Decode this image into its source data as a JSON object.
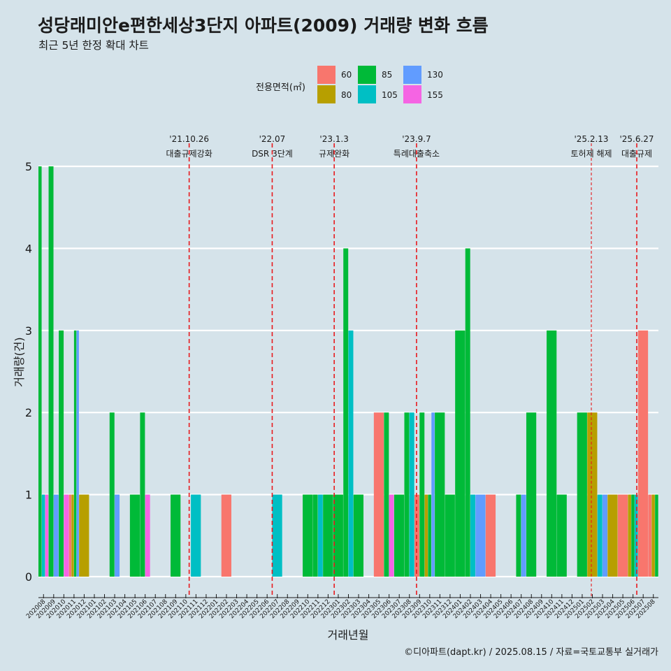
{
  "header": {
    "title": "성당래미안e편한세상3단지 아파트(2009) 거래량 변화 흐름",
    "subtitle": "최근 5년 한정 확대 차트"
  },
  "legend": {
    "title": "전용면적(㎡)",
    "items": [
      {
        "label": "60",
        "color": "#f8766d"
      },
      {
        "label": "80",
        "color": "#b79f00"
      },
      {
        "label": "85",
        "color": "#00ba38"
      },
      {
        "label": "105",
        "color": "#00bfc4"
      },
      {
        "label": "130",
        "color": "#619cff"
      },
      {
        "label": "155",
        "color": "#f564e3"
      }
    ]
  },
  "caption": "©디아파트(dapt.kr) / 2025.08.15 / 자료=국토교통부 실거래가",
  "chart_data": {
    "type": "bar",
    "xlabel": "거래년월",
    "ylabel": "거래량(건)",
    "ylim": [
      0,
      5
    ],
    "yticks": [
      0,
      1,
      2,
      3,
      4,
      5
    ],
    "grid": "horizontal",
    "categories": [
      "202008",
      "202009",
      "202010",
      "202011",
      "202012",
      "202101",
      "202102",
      "202103",
      "202104",
      "202105",
      "202106",
      "202107",
      "202108",
      "202109",
      "202110",
      "202111",
      "202112",
      "202201",
      "202202",
      "202203",
      "202204",
      "202205",
      "202206",
      "202207",
      "202208",
      "202209",
      "202210",
      "202211",
      "202212",
      "202301",
      "202302",
      "202303",
      "202304",
      "202305",
      "202306",
      "202307",
      "202308",
      "202309",
      "202310",
      "202311",
      "202312",
      "202401",
      "202402",
      "202403",
      "202404",
      "202405",
      "202406",
      "202407",
      "202408",
      "202409",
      "202410",
      "202411",
      "202412",
      "202501",
      "202502",
      "202503",
      "202504",
      "202505",
      "202506",
      "202507",
      "202508"
    ],
    "series": [
      {
        "name": "60",
        "color": "#f8766d",
        "values": [
          0,
          0,
          0,
          1,
          0,
          0,
          0,
          0,
          0,
          0,
          0,
          0,
          0,
          0,
          0,
          0,
          0,
          0,
          1,
          0,
          0,
          0,
          0,
          0,
          0,
          0,
          0,
          0,
          0,
          0,
          0,
          0,
          0,
          2,
          0,
          0,
          0,
          1,
          0,
          0,
          0,
          0,
          0,
          0,
          1,
          0,
          0,
          0,
          0,
          0,
          0,
          0,
          0,
          0,
          0,
          0,
          0,
          1,
          0,
          3,
          1
        ]
      },
      {
        "name": "80",
        "color": "#b79f00",
        "values": [
          0,
          0,
          0,
          1,
          1,
          0,
          0,
          0,
          0,
          0,
          0,
          0,
          0,
          0,
          0,
          0,
          0,
          0,
          0,
          0,
          0,
          0,
          0,
          0,
          0,
          0,
          0,
          0,
          0,
          0,
          0,
          0,
          0,
          0,
          0,
          0,
          0,
          0,
          1,
          0,
          0,
          0,
          0,
          0,
          0,
          0,
          0,
          0,
          0,
          0,
          0,
          0,
          0,
          0,
          2,
          0,
          1,
          0,
          1,
          0,
          1
        ]
      },
      {
        "name": "85",
        "color": "#00ba38",
        "values": [
          5,
          5,
          3,
          3,
          0,
          0,
          0,
          2,
          0,
          1,
          2,
          0,
          0,
          1,
          0,
          0,
          0,
          0,
          0,
          0,
          0,
          0,
          0,
          0,
          0,
          0,
          1,
          1,
          1,
          1,
          4,
          1,
          0,
          0,
          2,
          1,
          2,
          2,
          1,
          2,
          1,
          3,
          4,
          0,
          0,
          0,
          0,
          1,
          2,
          0,
          3,
          1,
          0,
          2,
          0,
          0,
          0,
          0,
          1,
          0,
          1
        ]
      },
      {
        "name": "105",
        "color": "#00bfc4",
        "values": [
          1,
          0,
          0,
          0,
          0,
          0,
          0,
          0,
          0,
          0,
          0,
          0,
          0,
          0,
          0,
          1,
          0,
          0,
          0,
          0,
          0,
          0,
          0,
          1,
          0,
          0,
          0,
          1,
          0,
          0,
          3,
          0,
          0,
          0,
          0,
          0,
          2,
          0,
          0,
          0,
          0,
          0,
          1,
          0,
          0,
          0,
          0,
          0,
          0,
          0,
          0,
          0,
          0,
          0,
          0,
          1,
          0,
          0,
          1,
          0,
          0
        ]
      },
      {
        "name": "130",
        "color": "#619cff",
        "values": [
          0,
          1,
          0,
          3,
          0,
          0,
          0,
          1,
          0,
          0,
          0,
          0,
          0,
          0,
          0,
          0,
          0,
          0,
          0,
          0,
          0,
          0,
          0,
          0,
          0,
          0,
          0,
          0,
          0,
          0,
          0,
          0,
          0,
          0,
          0,
          0,
          0,
          0,
          2,
          0,
          0,
          0,
          0,
          1,
          0,
          0,
          0,
          1,
          0,
          0,
          0,
          0,
          0,
          0,
          0,
          1,
          0,
          0,
          0,
          0,
          0
        ]
      },
      {
        "name": "155",
        "color": "#f564e3",
        "values": [
          1,
          0,
          1,
          0,
          0,
          0,
          0,
          0,
          0,
          0,
          1,
          0,
          0,
          0,
          0,
          0,
          0,
          0,
          0,
          0,
          0,
          0,
          0,
          0,
          0,
          0,
          0,
          0,
          0,
          0,
          0,
          0,
          0,
          0,
          1,
          0,
          0,
          0,
          0,
          0,
          0,
          0,
          0,
          0,
          0,
          0,
          0,
          0,
          0,
          0,
          0,
          0,
          0,
          0,
          0,
          0,
          0,
          0,
          0,
          0,
          0
        ]
      }
    ],
    "annotations": [
      {
        "date": "'21.10.26",
        "label": "대출규제강화",
        "after": "202110",
        "frac": 0.83,
        "style": "major"
      },
      {
        "date": "'22.07",
        "label": "DSR 3단계",
        "after": "202207",
        "frac": 0.0,
        "style": "major"
      },
      {
        "date": "'23.1.3",
        "label": "규제완화",
        "after": "202301",
        "frac": 0.1,
        "style": "major"
      },
      {
        "date": "'23.9.7",
        "label": "특례대출축소",
        "after": "202309",
        "frac": 0.2,
        "style": "major"
      },
      {
        "date": "'25.2.13",
        "label": "토허제 해제",
        "after": "202502",
        "frac": 0.4,
        "style": "minor"
      },
      {
        "date": "'25.6.27",
        "label": "대출규제",
        "after": "202506",
        "frac": 0.87,
        "style": "major"
      }
    ]
  }
}
